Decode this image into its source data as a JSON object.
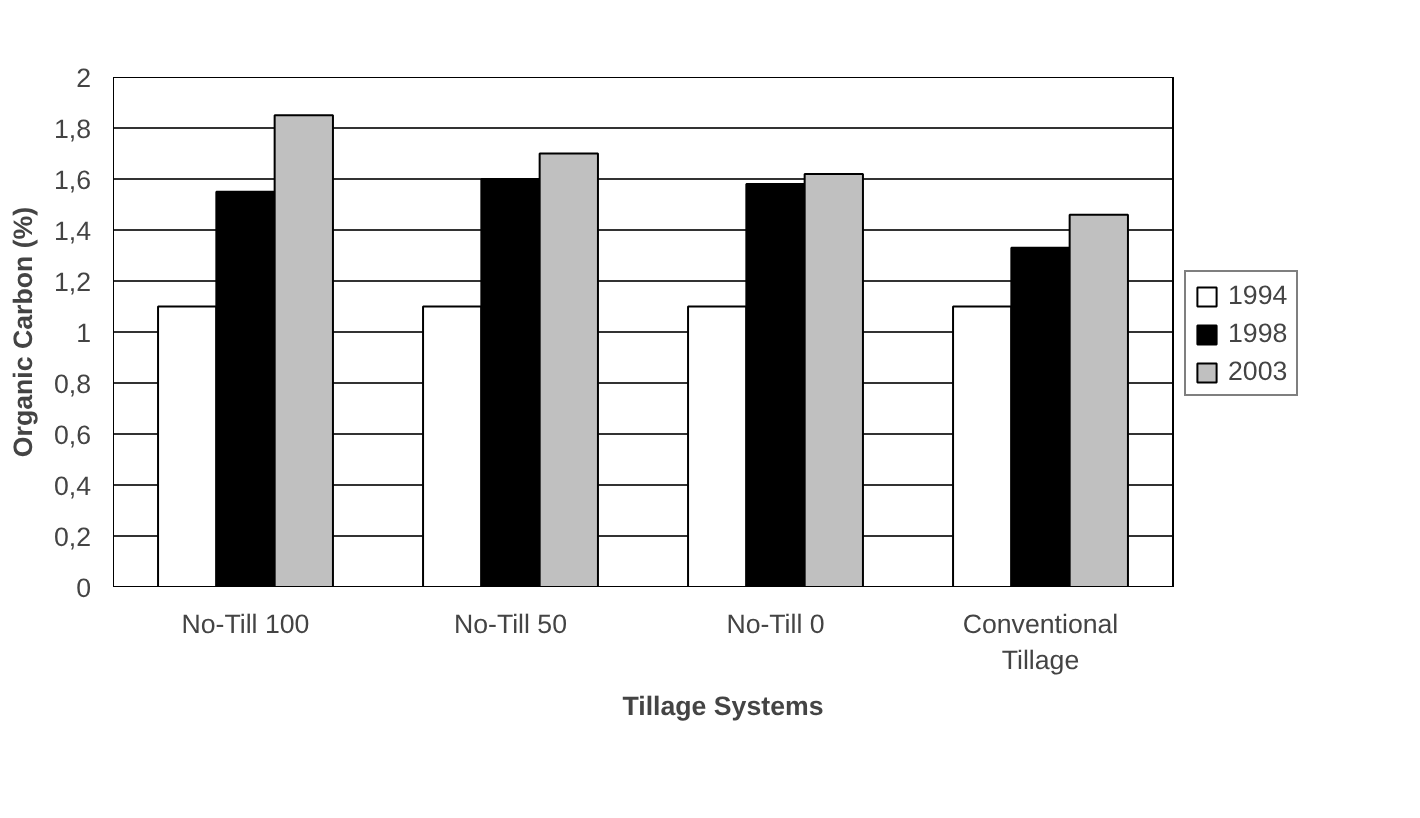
{
  "chart_data": {
    "type": "bar",
    "xlabel": "Tillage Systems",
    "ylabel": "Organic Carbon (%)",
    "categories": [
      "No-Till 100",
      "No-Till 50",
      "No-Till 0",
      "Conventional\nTillage"
    ],
    "series": [
      {
        "name": "1994",
        "color": "#ffffff",
        "values": [
          1.1,
          1.1,
          1.1,
          1.1
        ]
      },
      {
        "name": "1998",
        "color": "#000000",
        "values": [
          1.55,
          1.6,
          1.58,
          1.33
        ]
      },
      {
        "name": "2003",
        "color": "#c0c0c0",
        "values": [
          1.85,
          1.7,
          1.62,
          1.46
        ]
      }
    ],
    "ylim": [
      0,
      2
    ],
    "yticks": [
      0,
      {
        "value": 0.2,
        "label": "0,2"
      },
      {
        "value": 0.4,
        "label": "0,4"
      },
      {
        "value": 0.6,
        "label": "0,6"
      },
      {
        "value": 0.8,
        "label": "0,8"
      },
      1,
      {
        "value": 1.2,
        "label": "1,2"
      },
      {
        "value": 1.4,
        "label": "1,4"
      },
      {
        "value": 1.6,
        "label": "1,6"
      },
      {
        "value": 1.8,
        "label": "1,8"
      },
      2
    ],
    "grid": "y",
    "legend": "right"
  }
}
